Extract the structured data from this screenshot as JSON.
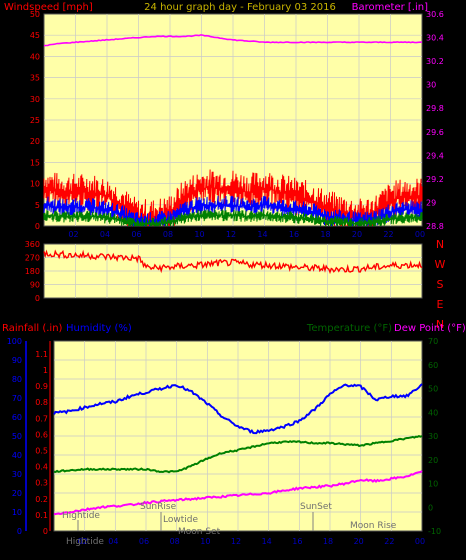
{
  "colors": {
    "background": "#000000",
    "plot_bg": "#ffffa8",
    "grid": "#c9c9c9",
    "red": "#ff0000",
    "blue": "#0000ff",
    "green": "#008000",
    "dark_green": "#006400",
    "magenta": "#ff00ff",
    "gold": "#c8b400",
    "event_text": "#707070",
    "border": "#555555"
  },
  "x_ticks": [
    "02",
    "04",
    "06",
    "08",
    "10",
    "12",
    "14",
    "16",
    "18",
    "20",
    "22",
    "00"
  ],
  "top_panel": {
    "title_left": "Windspeed [mph]",
    "title_center": "24 hour graph day - February 03 2016",
    "title_right": "Barometer [.in]",
    "left_ticks": [
      "0",
      "5",
      "10",
      "15",
      "20",
      "25",
      "30",
      "35",
      "40",
      "45",
      "50"
    ],
    "right_ticks": [
      "28.8",
      "29",
      "29.2",
      "29.4",
      "29.6",
      "29.8",
      "30",
      "30.2",
      "30.4",
      "30.6"
    ]
  },
  "middle_panel": {
    "left_ticks": [
      "0",
      "90",
      "180",
      "270",
      "360"
    ],
    "compass": [
      "N",
      "W",
      "S",
      "E",
      "N"
    ]
  },
  "bottom_panel": {
    "title_rainfall": "Rainfall (.in)",
    "title_humidity": "Humidity (%)",
    "title_temperature": "Temperature (°F)",
    "title_dewpoint": "Dew Point (°F)",
    "humidity_ticks": [
      "0",
      "10",
      "20",
      "30",
      "40",
      "50",
      "60",
      "70",
      "80",
      "90",
      "100"
    ],
    "rain_ticks": [
      "0",
      "0.1",
      "0.2",
      "0.3",
      "0.4",
      "0.5",
      "0.6",
      "0.7",
      "0.8",
      "0.9",
      "1",
      "1.1"
    ],
    "temp_ticks": [
      "-10",
      "0",
      "10",
      "20",
      "30",
      "40",
      "50",
      "60",
      "70"
    ],
    "events": {
      "hightide_1": "Hightide",
      "sunrise": "SunRise",
      "lowtide": "Lowtide",
      "moonset": "Moon Set",
      "sunset": "SunSet",
      "moonrise": "Moon Rise",
      "hightide_2": "Hightide"
    }
  },
  "chart_data": [
    {
      "type": "line",
      "title": "24 hour graph day - February 03 2016",
      "xlabel": "",
      "xlim": [
        0,
        24
      ],
      "ylim_left": [
        0,
        50
      ],
      "ylim_right": [
        28.8,
        30.6
      ],
      "series": [
        {
          "name": "Windspeed [mph]",
          "axis": "left",
          "x": [
            0,
            1,
            2,
            3,
            4,
            5,
            5.5,
            6,
            7,
            8,
            9,
            10,
            11,
            12,
            13,
            14,
            15,
            16,
            17,
            18,
            19,
            20,
            21,
            22,
            23,
            24
          ],
          "values": [
            9,
            8,
            8,
            8,
            7,
            5,
            3,
            2,
            2,
            3,
            7,
            9,
            9,
            9,
            8,
            9,
            8,
            7,
            6,
            4,
            3,
            2,
            3,
            6,
            7,
            7
          ]
        },
        {
          "name": "Barometer [.in]",
          "axis": "right",
          "x": [
            0,
            1,
            2,
            3,
            4,
            5,
            6,
            7,
            8,
            9,
            10,
            11,
            12,
            13,
            14,
            15,
            16,
            17,
            18,
            19,
            20,
            21,
            22,
            23,
            24
          ],
          "values": [
            30.33,
            30.35,
            30.36,
            30.37,
            30.38,
            30.39,
            30.4,
            30.41,
            30.41,
            30.41,
            30.42,
            30.4,
            30.38,
            30.37,
            30.36,
            30.36,
            30.36,
            30.36,
            30.36,
            30.36,
            30.36,
            30.36,
            30.36,
            30.36,
            30.36
          ]
        }
      ]
    },
    {
      "type": "line",
      "xlim": [
        0,
        24
      ],
      "ylim": [
        0,
        360
      ],
      "series": [
        {
          "name": "Wind direction",
          "x": [
            0,
            1,
            2,
            3,
            4,
            5,
            6,
            6.5,
            7,
            8,
            9,
            10,
            11,
            12,
            13,
            14,
            15,
            16,
            17,
            18,
            19,
            20,
            21,
            22,
            23,
            24
          ],
          "values": [
            300,
            290,
            285,
            282,
            275,
            270,
            265,
            205,
            200,
            205,
            215,
            220,
            232,
            235,
            225,
            220,
            215,
            205,
            200,
            195,
            190,
            195,
            205,
            215,
            220,
            222
          ]
        }
      ]
    },
    {
      "type": "line",
      "xlim": [
        0,
        24
      ],
      "ylim_left": [
        0,
        100
      ],
      "ylim_right": [
        -10,
        70
      ],
      "series": [
        {
          "name": "Humidity (%)",
          "axis": "left",
          "x": [
            0,
            1,
            2,
            3,
            4,
            5,
            6,
            7,
            8,
            9,
            10,
            11,
            12,
            13,
            14,
            15,
            16,
            17,
            18,
            19,
            20,
            21,
            22,
            23,
            24
          ],
          "values": [
            62,
            63,
            65,
            67,
            68,
            71,
            73,
            75,
            77,
            73,
            67,
            60,
            55,
            52,
            53,
            55,
            58,
            64,
            72,
            77,
            76,
            69,
            71,
            71,
            77
          ]
        },
        {
          "name": "Temperature (°F)",
          "axis": "right",
          "x": [
            0,
            1,
            2,
            3,
            4,
            5,
            6,
            7,
            8,
            9,
            10,
            11,
            12,
            13,
            14,
            15,
            16,
            17,
            18,
            19,
            20,
            21,
            22,
            23,
            24
          ],
          "values": [
            15,
            15.5,
            16,
            16,
            16,
            16,
            16,
            15,
            15,
            17.5,
            20.5,
            23,
            24,
            25.5,
            27,
            27.5,
            27.5,
            27,
            27,
            26.5,
            26,
            27,
            28,
            29,
            30
          ]
        },
        {
          "name": "Dew Point (°F)",
          "axis": "right",
          "x": [
            0,
            1,
            2,
            3,
            4,
            5,
            6,
            7,
            8,
            9,
            10,
            11,
            12,
            13,
            14,
            15,
            16,
            17,
            18,
            19,
            20,
            21,
            22,
            23,
            24
          ],
          "values": [
            -3,
            -2,
            -1,
            0,
            0.5,
            1,
            2,
            2.5,
            3,
            3.5,
            4,
            4.5,
            5,
            5.5,
            6,
            7,
            8,
            8.5,
            9,
            10,
            11.5,
            11,
            12,
            13,
            15
          ]
        },
        {
          "name": "Rainfall (.in)",
          "axis": "rain",
          "x": [
            0,
            24
          ],
          "values": [
            0,
            0
          ]
        }
      ]
    }
  ]
}
